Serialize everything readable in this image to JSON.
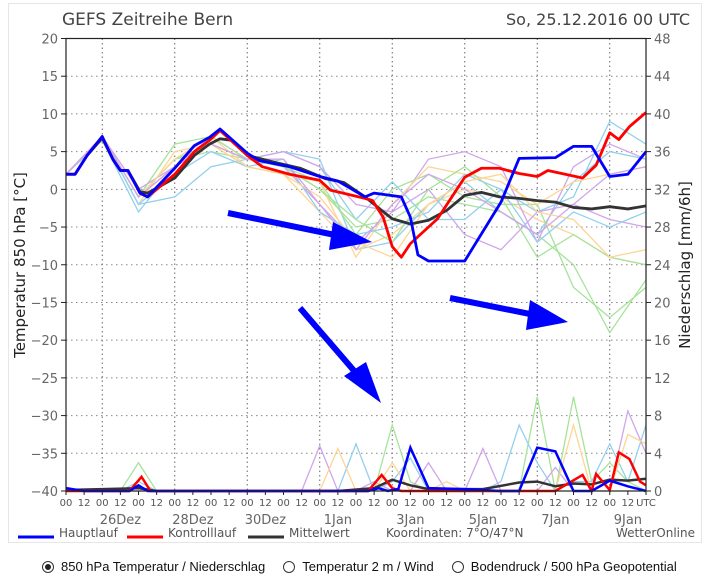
{
  "chart_data": {
    "type": "line",
    "title": "GEFS Zeitreihe Bern",
    "run_label": "So, 25.12.2016 00 UTC",
    "ylabel": "Temperatur 850 hPa [°C]",
    "ylabel_right": "Niederschlag [mm/6h]",
    "ylim": [
      -40,
      20
    ],
    "ylim_right": [
      0,
      48
    ],
    "yticks": [
      20,
      15,
      10,
      5,
      0,
      -5,
      -10,
      -15,
      -20,
      -25,
      -30,
      -35,
      -40
    ],
    "yticks_right": [
      48,
      44,
      40,
      36,
      32,
      28,
      24,
      20,
      16,
      12,
      8,
      4,
      0
    ],
    "xlim_hours": [
      0,
      384
    ],
    "xtick_labels": [
      "00",
      "12",
      "00",
      "12",
      "00",
      "12",
      "00",
      "12",
      "00",
      "12",
      "00",
      "12",
      "00",
      "12",
      "00",
      "12",
      "00",
      "12",
      "00",
      "12",
      "00",
      "12",
      "00",
      "12",
      "00",
      "12",
      "00",
      "12",
      "00",
      "12",
      "00",
      "12",
      "UTC"
    ],
    "date_labels": [
      {
        "label": "26Dez",
        "tick": 3
      },
      {
        "label": "28Dez",
        "tick": 7
      },
      {
        "label": "30Dez",
        "tick": 11
      },
      {
        "label": "1Jan",
        "tick": 15
      },
      {
        "label": "3Jan",
        "tick": 19
      },
      {
        "label": "5Jan",
        "tick": 23
      },
      {
        "label": "7Jan",
        "tick": 27
      },
      {
        "label": "9Jan",
        "tick": 31
      }
    ],
    "grid": true,
    "legend": {
      "items": [
        {
          "name": "Hauptlauf",
          "color": "#0000ff"
        },
        {
          "name": "Kontrolllauf",
          "color": "#ff0000"
        },
        {
          "name": "Mittelwert",
          "color": "#333333"
        }
      ],
      "coords": "Koordinaten:  7°O/47°N",
      "source": "WetterOnline",
      "placement": "bottom"
    },
    "main_series": [
      {
        "name": "Hauptlauf",
        "color": "#0000ff",
        "temperature": [
          [
            0,
            2
          ],
          [
            6,
            2
          ],
          [
            14,
            4.5
          ],
          [
            24,
            7
          ],
          [
            31,
            4
          ],
          [
            36,
            2.5
          ],
          [
            41,
            2.5
          ],
          [
            49,
            -0.5
          ],
          [
            54,
            -1
          ],
          [
            72,
            2.8
          ],
          [
            85,
            5.8
          ],
          [
            95,
            6.9
          ],
          [
            102,
            8
          ],
          [
            120,
            4.8
          ],
          [
            128,
            3.8
          ],
          [
            148,
            3
          ],
          [
            168,
            1.7
          ],
          [
            180,
            1.1
          ],
          [
            186,
            0.4
          ],
          [
            198,
            -1
          ],
          [
            204,
            -0.5
          ],
          [
            222,
            -1
          ],
          [
            228,
            -3.7
          ],
          [
            233,
            -8.7
          ],
          [
            240,
            -9.5
          ],
          [
            264,
            -9.5
          ],
          [
            288,
            -1.7
          ],
          [
            300,
            4.1
          ],
          [
            324,
            4.2
          ],
          [
            336,
            5.7
          ],
          [
            348,
            5.7
          ],
          [
            360,
            1.7
          ],
          [
            372,
            2
          ],
          [
            384,
            5
          ]
        ],
        "precip": [
          [
            0,
            0.3
          ],
          [
            12,
            0
          ],
          [
            42,
            0
          ],
          [
            48,
            0.6
          ],
          [
            54,
            0
          ],
          [
            200,
            0
          ],
          [
            207,
            0.3
          ],
          [
            213,
            0
          ],
          [
            220,
            0.2
          ],
          [
            228,
            4.6
          ],
          [
            240,
            0.3
          ],
          [
            264,
            0.2
          ],
          [
            287,
            0
          ],
          [
            300,
            0
          ],
          [
            312,
            4.6
          ],
          [
            324,
            4.2
          ],
          [
            336,
            0
          ],
          [
            348,
            0
          ],
          [
            360,
            1.1
          ],
          [
            372,
            0.5
          ],
          [
            384,
            0
          ]
        ]
      },
      {
        "name": "Kontrolllauf",
        "color": "#ff0000",
        "temperature": [
          [
            0,
            2
          ],
          [
            6,
            2
          ],
          [
            14,
            4.5
          ],
          [
            24,
            7
          ],
          [
            31,
            4
          ],
          [
            36,
            2.5
          ],
          [
            41,
            2.5
          ],
          [
            49,
            -0.5
          ],
          [
            54,
            -1
          ],
          [
            72,
            2
          ],
          [
            85,
            5
          ],
          [
            95,
            6.5
          ],
          [
            102,
            7.8
          ],
          [
            120,
            4.5
          ],
          [
            130,
            3
          ],
          [
            148,
            2
          ],
          [
            168,
            1.2
          ],
          [
            175,
            -0.1
          ],
          [
            198,
            -1.2
          ],
          [
            203,
            -1.5
          ],
          [
            210,
            -3.7
          ],
          [
            216,
            -7.6
          ],
          [
            222,
            -9
          ],
          [
            228,
            -7.2
          ],
          [
            246,
            -3.9
          ],
          [
            264,
            1.6
          ],
          [
            275,
            2.8
          ],
          [
            287,
            2.8
          ],
          [
            300,
            2.1
          ],
          [
            312,
            1.7
          ],
          [
            319,
            2.5
          ],
          [
            342,
            1.5
          ],
          [
            351,
            3.2
          ],
          [
            360,
            7.5
          ],
          [
            366,
            6.6
          ],
          [
            373,
            8.3
          ],
          [
            384,
            10.2
          ]
        ],
        "precip": [
          [
            0,
            0
          ],
          [
            42,
            0
          ],
          [
            50,
            1.5
          ],
          [
            56,
            0
          ],
          [
            200,
            0
          ],
          [
            209,
            1.7
          ],
          [
            216,
            0.3
          ],
          [
            222,
            0
          ],
          [
            324,
            0
          ],
          [
            342,
            1.7
          ],
          [
            348,
            0
          ],
          [
            351,
            1.8
          ],
          [
            360,
            0.1
          ],
          [
            366,
            4.1
          ],
          [
            373,
            3.4
          ],
          [
            380,
            1
          ],
          [
            384,
            0.6
          ]
        ]
      },
      {
        "name": "Mittelwert",
        "color": "#333333",
        "temperature": [
          [
            0,
            2
          ],
          [
            6,
            2
          ],
          [
            14,
            4.5
          ],
          [
            24,
            6.8
          ],
          [
            31,
            4
          ],
          [
            36,
            2.5
          ],
          [
            41,
            2.5
          ],
          [
            49,
            -0.3
          ],
          [
            54,
            -0.5
          ],
          [
            72,
            1.5
          ],
          [
            85,
            4.5
          ],
          [
            95,
            6
          ],
          [
            102,
            6.7
          ],
          [
            110,
            6.5
          ],
          [
            120,
            4.5
          ],
          [
            140,
            3.5
          ],
          [
            155,
            2.8
          ],
          [
            172,
            1.4
          ],
          [
            184,
            0.9
          ],
          [
            198,
            -1
          ],
          [
            209,
            -2.8
          ],
          [
            216,
            -3.9
          ],
          [
            228,
            -4.6
          ],
          [
            240,
            -4.1
          ],
          [
            252,
            -2.8
          ],
          [
            264,
            -0.8
          ],
          [
            275,
            -0.4
          ],
          [
            287,
            -1
          ],
          [
            300,
            -1.2
          ],
          [
            312,
            -1.5
          ],
          [
            324,
            -1.7
          ],
          [
            336,
            -2.4
          ],
          [
            348,
            -2.6
          ],
          [
            360,
            -2.3
          ],
          [
            372,
            -2.6
          ],
          [
            384,
            -2.2
          ]
        ],
        "precip": [
          [
            0,
            0.1
          ],
          [
            48,
            0.3
          ],
          [
            60,
            0
          ],
          [
            180,
            0
          ],
          [
            204,
            0.3
          ],
          [
            216,
            1.2
          ],
          [
            228,
            0.6
          ],
          [
            240,
            0.2
          ],
          [
            276,
            0.2
          ],
          [
            300,
            0.9
          ],
          [
            312,
            1
          ],
          [
            324,
            0.5
          ],
          [
            336,
            0.8
          ],
          [
            348,
            0.7
          ],
          [
            360,
            1.2
          ],
          [
            372,
            1.1
          ],
          [
            384,
            1.3
          ]
        ]
      }
    ],
    "members_step_hours": 24,
    "members": [
      {
        "color": "#a6e39a",
        "temperature": [
          2,
          7,
          -1,
          4,
          5,
          4,
          3,
          0,
          -5,
          -4,
          -1,
          -2,
          -3,
          -6,
          -10,
          -19,
          -12
        ]
      },
      {
        "color": "#93d0ee",
        "temperature": [
          2,
          6.5,
          -3,
          3,
          6,
          4,
          5,
          4,
          -8,
          -7,
          -2,
          1,
          -3,
          -6,
          1,
          5,
          4
        ]
      },
      {
        "color": "#fdd595",
        "temperature": [
          2,
          7,
          -2,
          5,
          6,
          3,
          2,
          -3,
          -8,
          -6,
          -2,
          0,
          -1,
          -4,
          -6,
          -9,
          -10
        ]
      },
      {
        "color": "#d0a6ea",
        "temperature": [
          2,
          7,
          -1,
          3,
          7,
          4,
          3,
          -2,
          -7,
          -3,
          4,
          5,
          3,
          -7,
          3,
          6,
          4
        ]
      },
      {
        "color": "#a6e39a",
        "temperature": [
          2,
          7,
          -1,
          6,
          7,
          4,
          3,
          1,
          -6,
          0,
          2,
          -1,
          -2,
          -2,
          -13,
          -17,
          -13
        ]
      },
      {
        "color": "#93d0ee",
        "temperature": [
          2,
          7,
          -2,
          -1,
          3,
          4,
          5,
          3,
          -4,
          1,
          -4,
          -4,
          0,
          -3,
          -1,
          9,
          6
        ]
      },
      {
        "color": "#fdd595",
        "temperature": [
          2,
          7,
          -1,
          3,
          6,
          3,
          2,
          1,
          -9,
          -2,
          3,
          2,
          1,
          -2,
          1,
          2,
          3
        ]
      },
      {
        "color": "#d0a6ea",
        "temperature": [
          2,
          7,
          0,
          3,
          6,
          4,
          5,
          3,
          -2,
          -3,
          0,
          -6,
          -8,
          -3,
          -2,
          -4,
          -5
        ]
      },
      {
        "color": "#a6e39a",
        "temperature": [
          2,
          7,
          -1,
          4,
          6,
          4,
          3,
          0,
          -4,
          -7,
          0,
          3,
          -1,
          -9,
          -6,
          -9,
          -10
        ]
      },
      {
        "color": "#93d0ee",
        "temperature": [
          2,
          7,
          -2,
          2,
          5,
          3,
          4,
          -3,
          -6,
          -5,
          -3,
          2,
          0,
          -7,
          -3,
          -5,
          -3
        ]
      },
      {
        "color": "#fdd595",
        "temperature": [
          2,
          7,
          -1,
          4,
          7,
          3,
          2,
          -1,
          -7,
          -9,
          -2,
          1,
          2,
          -3,
          -4,
          -9,
          -8
        ]
      },
      {
        "color": "#d0a6ea",
        "temperature": [
          2,
          7,
          -1,
          3,
          6,
          4,
          4,
          -2,
          -8,
          -2,
          2,
          0,
          -3,
          -6,
          -2,
          2,
          3
        ]
      }
    ],
    "members_precip_step_hours": 12,
    "members_precip": [
      {
        "color": "#a6e39a",
        "values": [
          0,
          0,
          0,
          0,
          3,
          0,
          0,
          0,
          0,
          0,
          0,
          0,
          0,
          0,
          0,
          0,
          0,
          0,
          7,
          1,
          0,
          0,
          0,
          0,
          0,
          0,
          10,
          0,
          10,
          1,
          3,
          1,
          0
        ]
      },
      {
        "color": "#93d0ee",
        "values": [
          0,
          0,
          0,
          0,
          1,
          0,
          0,
          0,
          0,
          0,
          0,
          0,
          0,
          0,
          0,
          0,
          5,
          0,
          1,
          3.5,
          0,
          0,
          0,
          0,
          1,
          7,
          3,
          0,
          1,
          1,
          5,
          1,
          7
        ]
      },
      {
        "color": "#d0a6ea",
        "values": [
          0,
          0,
          0,
          0,
          0,
          0,
          0,
          0,
          0,
          0,
          0,
          0,
          0,
          0,
          4.8,
          0,
          0,
          1,
          0,
          0,
          3,
          0,
          0,
          4.5,
          0,
          0,
          0,
          2.5,
          0,
          0,
          0,
          8.5,
          4
        ]
      },
      {
        "color": "#fdd595",
        "values": [
          0,
          0,
          0,
          0,
          0.5,
          0,
          0,
          0,
          0,
          0,
          0,
          0,
          0,
          0,
          0,
          4.5,
          0,
          0,
          3,
          0,
          0,
          1,
          0,
          0,
          0,
          0,
          0,
          0,
          7,
          0,
          0,
          6,
          5
        ]
      }
    ]
  },
  "controls": {
    "options": [
      {
        "label": "850 hPa Temperatur / Niederschlag",
        "selected": true
      },
      {
        "label": "Temperatur 2 m / Wind",
        "selected": false
      },
      {
        "label": "Bodendruck / 500 hPa Geopotential",
        "selected": false
      }
    ]
  }
}
